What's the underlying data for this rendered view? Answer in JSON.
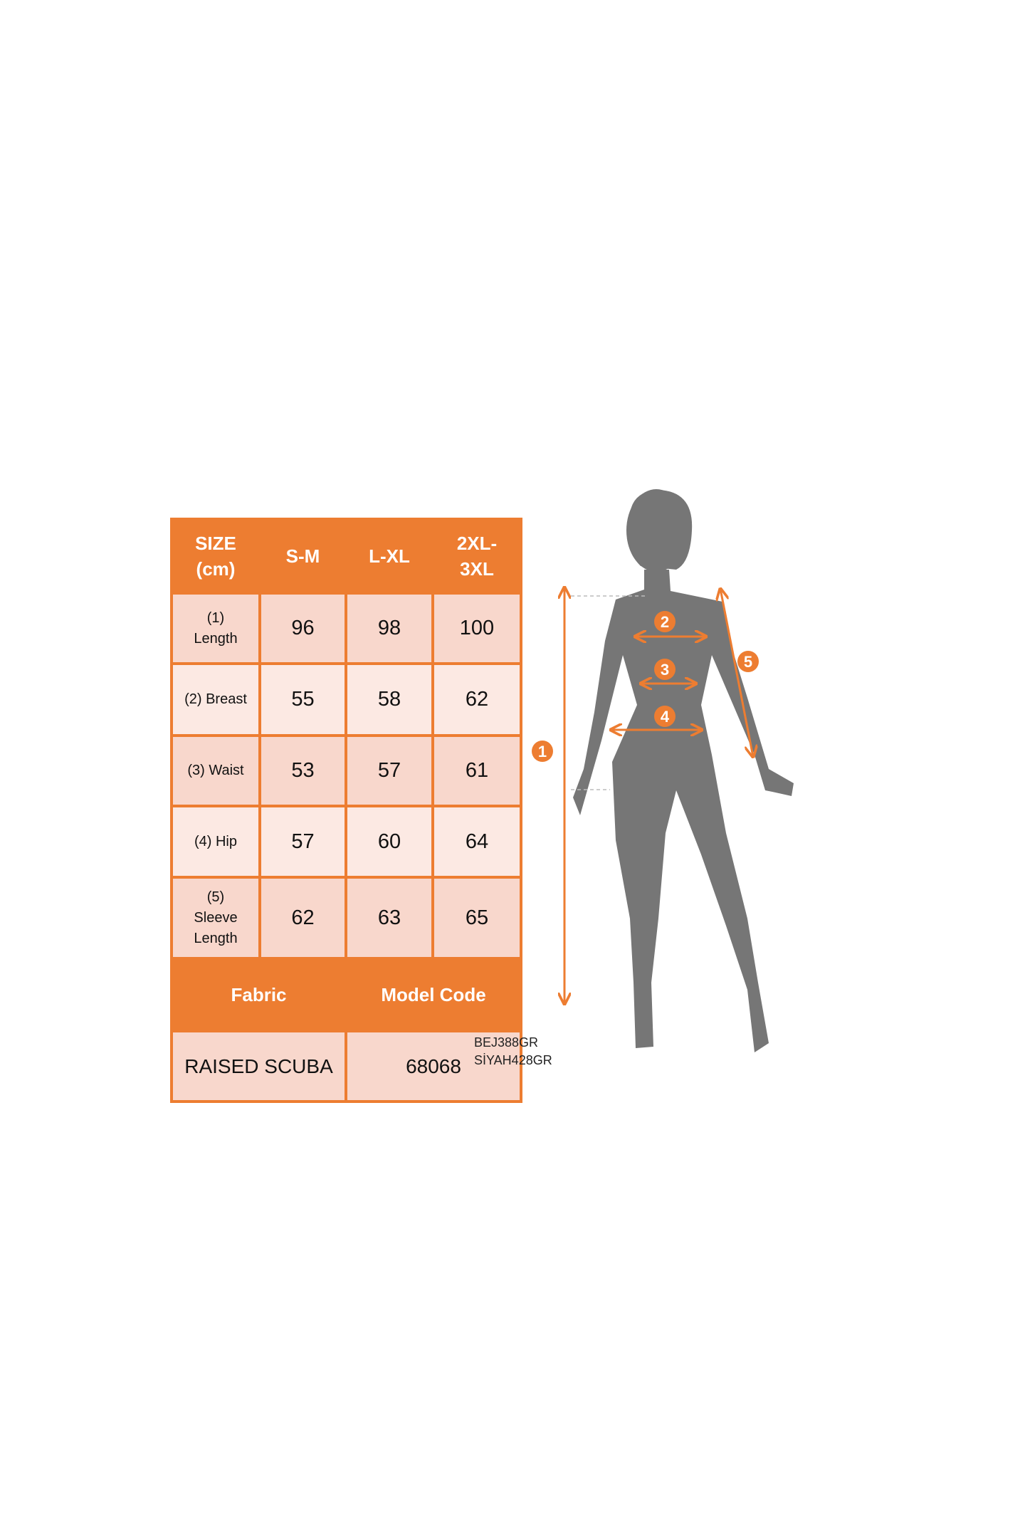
{
  "table": {
    "header": [
      "SIZE (cm)",
      "S-M",
      "L-XL",
      "2XL-3XL"
    ],
    "header_lines": {
      "size": [
        "SIZE",
        "(cm)"
      ],
      "xxl": [
        "2XL-",
        "3XL"
      ]
    },
    "rows": [
      {
        "label": [
          "(1)",
          "Length"
        ],
        "values": [
          "96",
          "98",
          "100"
        ]
      },
      {
        "label": [
          "(2) Breast"
        ],
        "values": [
          "55",
          "58",
          "62"
        ]
      },
      {
        "label": [
          "(3) Waist"
        ],
        "values": [
          "53",
          "57",
          "61"
        ]
      },
      {
        "label": [
          "(4) Hip"
        ],
        "values": [
          "57",
          "60",
          "64"
        ]
      },
      {
        "label": [
          "(5)",
          "Sleeve",
          "Length"
        ],
        "values": [
          "62",
          "63",
          "65"
        ]
      }
    ],
    "footer_headers": [
      "Fabric",
      "Model Code"
    ],
    "footer_values": [
      "RAISED SCUBA",
      "68068"
    ]
  },
  "codes": [
    "BEJ388GR",
    "SİYAH428GR"
  ],
  "figure": {
    "markers": [
      "1",
      "2",
      "3",
      "4",
      "5"
    ],
    "silhouette_color": "#767676",
    "accent_color": "#ED7D31"
  }
}
